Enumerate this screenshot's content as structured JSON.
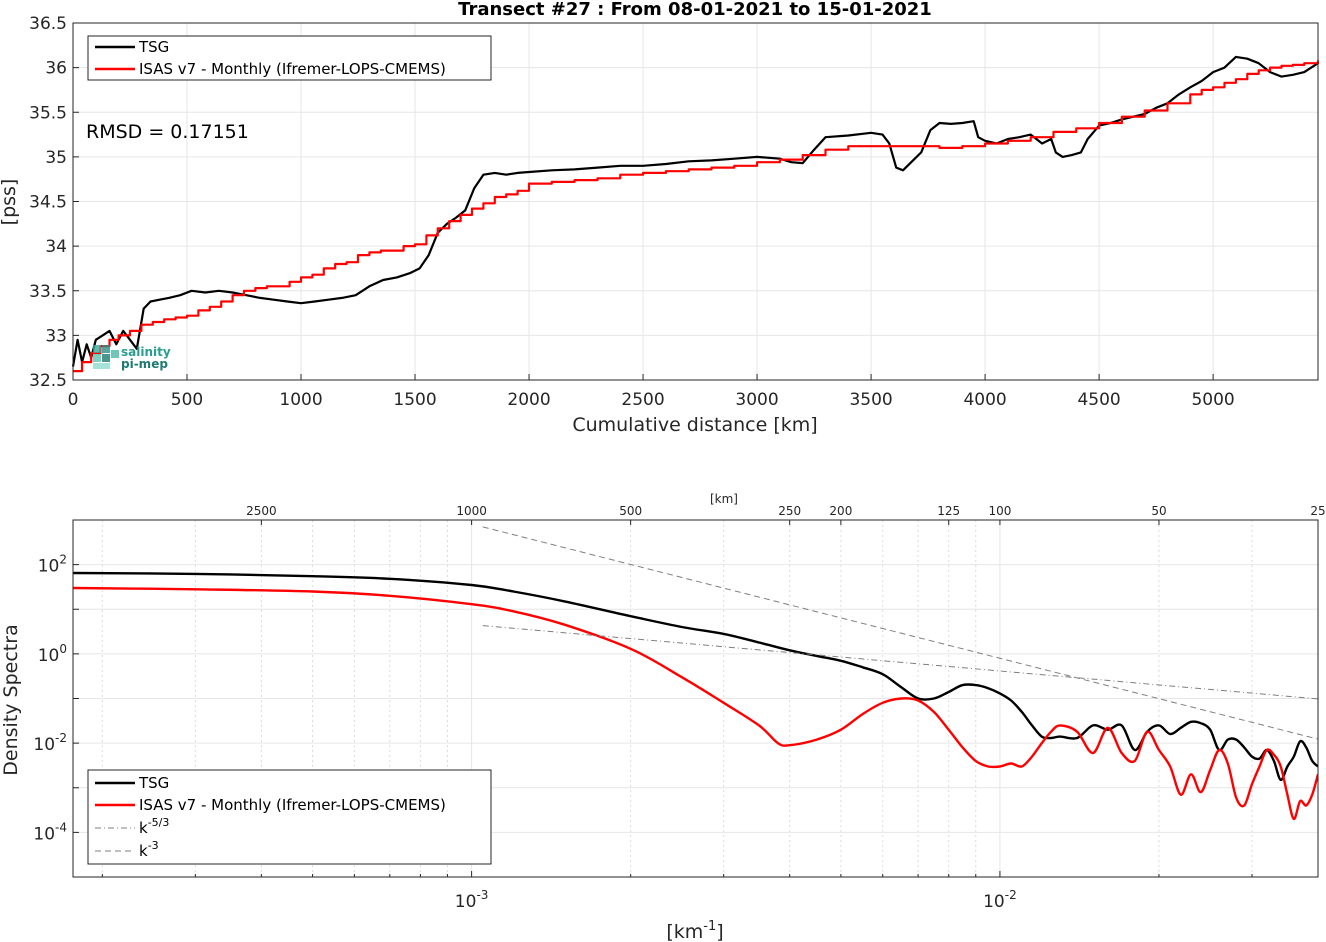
{
  "chart_data": [
    {
      "type": "line",
      "title": "Transect #27 : From 08-01-2021 to 15-01-2021",
      "xlabel": "Cumulative distance [km]",
      "ylabel": "[pss]",
      "xlim": [
        0,
        5460
      ],
      "ylim": [
        32.5,
        36.5
      ],
      "xticks": [
        0,
        500,
        1000,
        1500,
        2000,
        2500,
        3000,
        3500,
        4000,
        4500,
        5000
      ],
      "yticks": [
        32.5,
        33,
        33.5,
        34,
        34.5,
        35,
        35.5,
        36,
        36.5
      ],
      "grid": true,
      "legend": "top-left",
      "annotation": "RMSD = 0.17151",
      "logo_text": [
        "salinity",
        "pi-mep"
      ],
      "series": [
        {
          "name": "TSG",
          "color": "#000000",
          "x": [
            0,
            20,
            40,
            60,
            80,
            100,
            130,
            160,
            190,
            220,
            250,
            280,
            310,
            340,
            380,
            420,
            470,
            520,
            580,
            640,
            700,
            760,
            820,
            880,
            940,
            1000,
            1060,
            1120,
            1180,
            1240,
            1300,
            1360,
            1420,
            1480,
            1520,
            1560,
            1600,
            1640,
            1680,
            1720,
            1760,
            1800,
            1850,
            1900,
            1950,
            2000,
            2100,
            2200,
            2300,
            2400,
            2500,
            2600,
            2700,
            2800,
            2900,
            3000,
            3100,
            3150,
            3200,
            3250,
            3300,
            3400,
            3500,
            3550,
            3580,
            3610,
            3640,
            3680,
            3720,
            3760,
            3800,
            3850,
            3900,
            3950,
            3970,
            4000,
            4050,
            4100,
            4150,
            4200,
            4250,
            4290,
            4310,
            4340,
            4380,
            4420,
            4450,
            4500,
            4550,
            4600,
            4650,
            4700,
            4750,
            4800,
            4850,
            4900,
            4950,
            5000,
            5050,
            5100,
            5150,
            5200,
            5250,
            5300,
            5350,
            5400,
            5460
          ],
          "y": [
            32.65,
            32.95,
            32.7,
            32.9,
            32.75,
            32.95,
            33.0,
            33.05,
            32.9,
            33.05,
            32.95,
            32.85,
            33.3,
            33.38,
            33.4,
            33.42,
            33.45,
            33.5,
            33.48,
            33.5,
            33.48,
            33.45,
            33.42,
            33.4,
            33.38,
            33.36,
            33.38,
            33.4,
            33.42,
            33.45,
            33.55,
            33.62,
            33.65,
            33.7,
            33.75,
            33.9,
            34.15,
            34.25,
            34.32,
            34.4,
            34.65,
            34.8,
            34.82,
            34.8,
            34.82,
            34.83,
            34.85,
            34.86,
            34.88,
            34.9,
            34.9,
            34.92,
            34.95,
            34.96,
            34.98,
            35.0,
            34.98,
            34.94,
            34.93,
            35.08,
            35.22,
            35.24,
            35.27,
            35.25,
            35.15,
            34.88,
            34.85,
            34.95,
            35.05,
            35.3,
            35.38,
            35.37,
            35.38,
            35.4,
            35.22,
            35.18,
            35.15,
            35.2,
            35.22,
            35.25,
            35.15,
            35.2,
            35.05,
            35.0,
            35.02,
            35.05,
            35.2,
            35.35,
            35.38,
            35.42,
            35.45,
            35.48,
            35.55,
            35.6,
            35.7,
            35.78,
            35.85,
            35.95,
            36.0,
            36.12,
            36.1,
            36.05,
            35.95,
            35.9,
            35.92,
            35.95,
            36.05
          ]
        },
        {
          "name": "ISAS v7 - Monthly (Ifremer-LOPS-CMEMS)",
          "color": "#ff0000",
          "x": [
            0,
            40,
            80,
            120,
            160,
            200,
            250,
            300,
            350,
            400,
            450,
            500,
            550,
            600,
            650,
            700,
            750,
            800,
            850,
            900,
            950,
            1000,
            1050,
            1100,
            1150,
            1200,
            1250,
            1300,
            1350,
            1400,
            1450,
            1500,
            1550,
            1600,
            1650,
            1700,
            1750,
            1800,
            1850,
            1900,
            1950,
            2000,
            2100,
            2200,
            2300,
            2400,
            2500,
            2600,
            2700,
            2800,
            2900,
            3000,
            3100,
            3200,
            3300,
            3400,
            3500,
            3600,
            3700,
            3800,
            3900,
            4000,
            4100,
            4200,
            4300,
            4400,
            4500,
            4600,
            4700,
            4800,
            4900,
            4950,
            5000,
            5050,
            5100,
            5150,
            5200,
            5250,
            5300,
            5350,
            5400,
            5460
          ],
          "y": [
            32.6,
            32.7,
            32.8,
            32.88,
            32.95,
            33.0,
            33.05,
            33.12,
            33.15,
            33.18,
            33.2,
            33.22,
            33.28,
            33.32,
            33.38,
            33.45,
            33.5,
            33.53,
            33.55,
            33.55,
            33.6,
            33.65,
            33.68,
            33.75,
            33.8,
            33.82,
            33.9,
            33.93,
            33.95,
            33.95,
            34.0,
            34.02,
            34.12,
            34.2,
            34.28,
            34.35,
            34.42,
            34.48,
            34.55,
            34.58,
            34.62,
            34.7,
            34.72,
            34.74,
            34.76,
            34.8,
            34.82,
            34.84,
            34.86,
            34.88,
            34.9,
            34.94,
            34.97,
            35.02,
            35.08,
            35.12,
            35.12,
            35.12,
            35.12,
            35.1,
            35.12,
            35.15,
            35.18,
            35.22,
            35.28,
            35.32,
            35.38,
            35.45,
            35.52,
            35.6,
            35.7,
            35.75,
            35.78,
            35.83,
            35.87,
            35.93,
            35.97,
            36.0,
            36.02,
            36.03,
            36.05,
            36.08
          ]
        }
      ]
    },
    {
      "type": "line",
      "title": "",
      "xlabel": "[km^-1]",
      "xlabel_base": "[km",
      "xlabel_exp": "-1",
      "xlabel_close": "]",
      "ylabel": "Density Spectra",
      "xscale": "log",
      "yscale": "log",
      "xlim": [
        0.000176,
        0.04
      ],
      "ylim": [
        1e-05,
        1000
      ],
      "xticks": [
        {
          "value": 0.001,
          "base": "10",
          "exp": "-3"
        },
        {
          "value": 0.01,
          "base": "10",
          "exp": "-2"
        }
      ],
      "yticks": [
        {
          "value": 0.0001,
          "base": "10",
          "exp": "-4"
        },
        {
          "value": 0.01,
          "base": "10",
          "exp": "-2"
        },
        {
          "value": 1,
          "base": "10",
          "exp": "0"
        },
        {
          "value": 100,
          "base": "10",
          "exp": "2"
        }
      ],
      "top_axis_label": "[km]",
      "top_ticks": [
        "2500",
        "1000",
        "500",
        "250",
        "200",
        "125",
        "100",
        "50",
        "25"
      ],
      "grid": true,
      "legend": "bottom-left",
      "series": [
        {
          "name": "TSG",
          "color": "#000000",
          "x": [
            0.000176,
            0.0003,
            0.0005,
            0.0007,
            0.001,
            0.0012,
            0.0015,
            0.002,
            0.0025,
            0.003,
            0.0035,
            0.004,
            0.0045,
            0.005,
            0.0055,
            0.006,
            0.0065,
            0.007,
            0.0075,
            0.008,
            0.0085,
            0.009,
            0.0095,
            0.01,
            0.0105,
            0.011,
            0.0115,
            0.012,
            0.0125,
            0.013,
            0.014,
            0.015,
            0.016,
            0.017,
            0.018,
            0.019,
            0.02,
            0.021,
            0.022,
            0.023,
            0.024,
            0.025,
            0.026,
            0.027,
            0.028,
            0.029,
            0.03,
            0.031,
            0.032,
            0.033,
            0.034,
            0.035,
            0.036,
            0.037,
            0.038,
            0.039,
            0.04
          ],
          "y": [
            65,
            62,
            55,
            48,
            35,
            25,
            15,
            7,
            4,
            2.8,
            1.8,
            1.2,
            0.9,
            0.7,
            0.5,
            0.35,
            0.18,
            0.1,
            0.1,
            0.14,
            0.2,
            0.2,
            0.17,
            0.13,
            0.09,
            0.05,
            0.025,
            0.014,
            0.013,
            0.014,
            0.013,
            0.025,
            0.02,
            0.025,
            0.007,
            0.018,
            0.025,
            0.016,
            0.022,
            0.03,
            0.028,
            0.02,
            0.007,
            0.012,
            0.012,
            0.008,
            0.005,
            0.0045,
            0.007,
            0.004,
            0.0015,
            0.003,
            0.005,
            0.011,
            0.008,
            0.004,
            0.003
          ]
        },
        {
          "name": "ISAS v7 - Monthly (Ifremer-LOPS-CMEMS)",
          "color": "#ff0000",
          "x": [
            0.000176,
            0.0003,
            0.0005,
            0.0007,
            0.001,
            0.0012,
            0.0015,
            0.002,
            0.0025,
            0.003,
            0.0035,
            0.0038,
            0.004,
            0.0045,
            0.005,
            0.0055,
            0.006,
            0.0065,
            0.007,
            0.0075,
            0.008,
            0.0085,
            0.009,
            0.0095,
            0.01,
            0.0105,
            0.011,
            0.0115,
            0.012,
            0.0125,
            0.013,
            0.014,
            0.015,
            0.016,
            0.017,
            0.018,
            0.019,
            0.02,
            0.021,
            0.022,
            0.023,
            0.024,
            0.025,
            0.026,
            0.027,
            0.028,
            0.029,
            0.03,
            0.031,
            0.032,
            0.033,
            0.034,
            0.035,
            0.036,
            0.037,
            0.038,
            0.039,
            0.04
          ],
          "y": [
            30,
            28,
            25,
            20,
            13,
            9,
            4.5,
            1.3,
            0.3,
            0.08,
            0.025,
            0.01,
            0.009,
            0.012,
            0.02,
            0.045,
            0.08,
            0.1,
            0.09,
            0.05,
            0.02,
            0.008,
            0.004,
            0.003,
            0.003,
            0.0035,
            0.003,
            0.005,
            0.01,
            0.018,
            0.025,
            0.018,
            0.006,
            0.022,
            0.006,
            0.004,
            0.018,
            0.007,
            0.003,
            0.0007,
            0.002,
            0.0008,
            0.0025,
            0.007,
            0.0035,
            0.0006,
            0.0004,
            0.0012,
            0.003,
            0.007,
            0.0055,
            0.003,
            0.0007,
            0.0002,
            0.0005,
            0.0004,
            0.0007,
            0.002
          ]
        },
        {
          "name": "k^-5/3",
          "color": "#7f7f7f",
          "dash": "dashdot",
          "x": [
            0.00105,
            0.04
          ],
          "y": [
            4.3,
            0.098
          ]
        },
        {
          "name": "k^-3",
          "color": "#7f7f7f",
          "dash": "dashed",
          "x": [
            0.00105,
            0.04
          ],
          "y": [
            700,
            0.0123
          ]
        }
      ]
    }
  ]
}
